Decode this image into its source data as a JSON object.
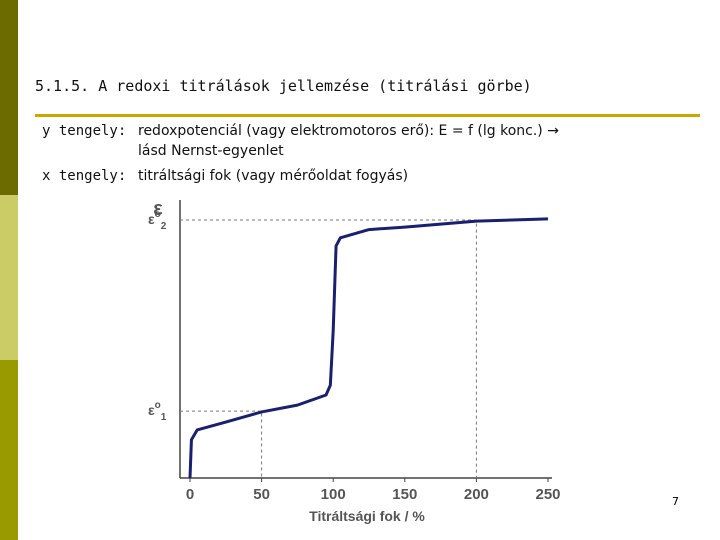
{
  "slide": {
    "title": "5.1.5. A redoxi titrálások jellemzése (titrálási görbe)",
    "items": [
      {
        "label": "y tengely:",
        "lines": [
          "redoxpotenciál (vagy elektromotoros erő): E = f (lg konc.) →",
          "lásd Nernst-egyenlet"
        ]
      },
      {
        "label": "x tengely:",
        "lines": [
          "titráltsági fok (vagy mérőoldat fogyás)"
        ]
      }
    ],
    "page_number": "7"
  },
  "chart_data": {
    "type": "line",
    "xlabel": "Titráltsági fok / %",
    "ylabel": "ε",
    "x": [
      0,
      1,
      5,
      25,
      50,
      75,
      95,
      98,
      100,
      102,
      105,
      125,
      150,
      200,
      250
    ],
    "series": [
      {
        "color": "#1a1f6e",
        "values": [
          0,
          14,
          17.6,
          20.5,
          24.2,
          26.7,
          30.4,
          34,
          54,
          85,
          88,
          91,
          91.9,
          94.1,
          94.9
        ]
      }
    ],
    "xlim": [
      0,
      250
    ],
    "xticks": [
      0,
      50,
      100,
      150,
      200,
      250
    ],
    "ylim": [
      0,
      100
    ],
    "annotations": [
      {
        "symbol": "ε",
        "sup": "o",
        "sub": "2",
        "x": 200,
        "value": 94.5
      },
      {
        "symbol": "ε",
        "sup": "o",
        "sub": "1",
        "x": 50,
        "value": 24.5
      }
    ]
  }
}
